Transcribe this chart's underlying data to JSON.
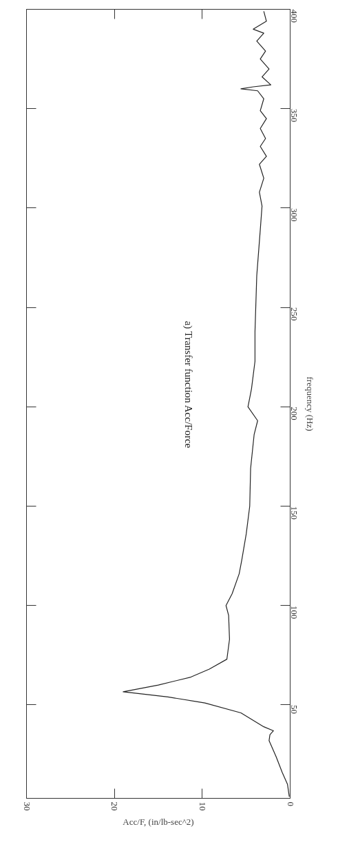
{
  "chart_data": {
    "type": "line",
    "title": "a) Transfer function Acc/Force",
    "xlabel": "Acc/F, (in/lb-sec^2)",
    "ylabel": "frequency (Hz)",
    "x": [
      0.1,
      0.3,
      0.9,
      1.6,
      2.4,
      2.3,
      1.9,
      3.0,
      5.6,
      9.7,
      13.9,
      19.0,
      15.0,
      11.3,
      9.2,
      7.2,
      6.9,
      7.0,
      7.3,
      6.6,
      5.8,
      5.5,
      5.0,
      4.6,
      4.5,
      4.1,
      3.7,
      4.8,
      4.4,
      4.0,
      4.0,
      3.8,
      3.4,
      3.2,
      3.5,
      3.0,
      3.5,
      2.7,
      3.4,
      2.8,
      3.4,
      2.7,
      3.4,
      3.0,
      3.7,
      5.6,
      4.2,
      2.2,
      3.2,
      2.4,
      3.4,
      2.8,
      3.8,
      3.0,
      4.2,
      2.7,
      3.0
    ],
    "series": [
      {
        "color": "#222222",
        "values": [
          3.8,
          10,
          16,
          24,
          32,
          35,
          37,
          39,
          46,
          51,
          54,
          56.6,
          60,
          64,
          68,
          73,
          83,
          95,
          100,
          106,
          116,
          123,
          136,
          150,
          169,
          186,
          193,
          200,
          209,
          223,
          238,
          266,
          289,
          301,
          308,
          315,
          322,
          326,
          331,
          335,
          340,
          345,
          349,
          355,
          359,
          360,
          361,
          362,
          366,
          370,
          375,
          379,
          384,
          388,
          390,
          394,
          399
        ]
      }
    ],
    "xlim": [
      30,
      0
    ],
    "xticks": [
      0,
      10,
      20,
      30
    ],
    "ylim": [
      3,
      400
    ],
    "yticks": [
      50,
      100,
      150,
      200,
      250,
      300,
      350,
      400
    ],
    "grid": false,
    "marker": "none",
    "line_style": "solid"
  }
}
